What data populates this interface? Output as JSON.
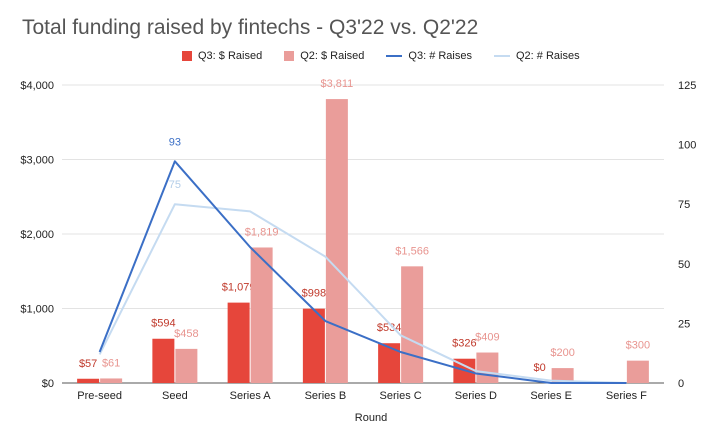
{
  "chart_data": {
    "type": "bar",
    "title": "Total funding raised by fintechs - Q3'22 vs. Q2'22",
    "xlabel": "Round",
    "ylabel": "",
    "y2label": "",
    "categories": [
      "Pre-seed",
      "Seed",
      "Series A",
      "Series B",
      "Series C",
      "Series D",
      "Series E",
      "Series F"
    ],
    "ylim": [
      0,
      4000
    ],
    "y2lim": [
      0,
      125
    ],
    "yticks": [
      "$0",
      "$1,000",
      "$2,000",
      "$3,000",
      "$4,000"
    ],
    "y2ticks": [
      "0",
      "25",
      "50",
      "75",
      "100",
      "125"
    ],
    "legend_position": "top",
    "grid": true,
    "series": [
      {
        "name": "Q3: $ Raised",
        "kind": "bar",
        "axis": "left",
        "color": "#e6463b",
        "values": [
          57,
          594,
          1079,
          998,
          534,
          326,
          0,
          null
        ],
        "labels": [
          "$57",
          "$594",
          "$1,079",
          "$998",
          "$534",
          "$326",
          "$0",
          ""
        ]
      },
      {
        "name": "Q2: $ Raised",
        "kind": "bar",
        "axis": "left",
        "color": "#ea9d9a",
        "values": [
          61,
          458,
          1819,
          3811,
          1566,
          409,
          200,
          300
        ],
        "labels": [
          "$61",
          "$458",
          "$1,819",
          "$3,811",
          "$1,566",
          "$409",
          "$200",
          "$300"
        ]
      },
      {
        "name": "Q3: # Raises",
        "kind": "line",
        "axis": "right",
        "color": "#3b6fc6",
        "values": [
          13,
          93,
          57,
          26,
          13,
          4,
          0,
          0
        ],
        "labels": [
          "",
          "93",
          "",
          "",
          "",
          "",
          "",
          ""
        ]
      },
      {
        "name": "Q2: # Raises",
        "kind": "line",
        "axis": "right",
        "color": "#c5dbf1",
        "values": [
          12,
          75,
          72,
          53,
          20,
          5,
          1,
          0
        ],
        "labels": [
          "",
          "75",
          "",
          "",
          "",
          "",
          "",
          ""
        ]
      }
    ]
  }
}
